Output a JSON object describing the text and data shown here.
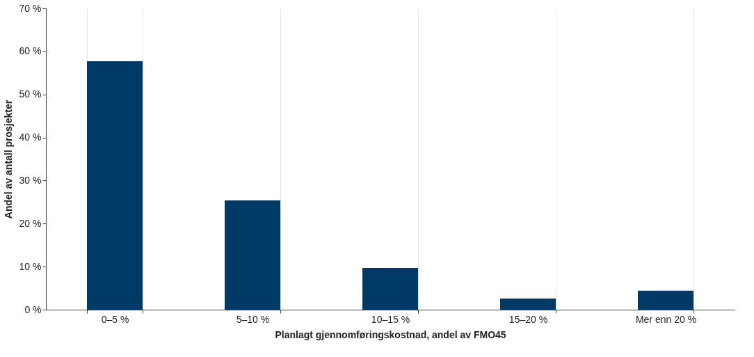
{
  "chart_data": {
    "type": "bar",
    "xlabel": "Planlagt gjennomføringskostnad, andel av FMO45",
    "ylabel": "Andel av antall prosjekter",
    "categories": [
      "0–5 %",
      "5–10 %",
      "10–15 %",
      "15–20 %",
      "Mer enn 20 %"
    ],
    "values": [
      57.7,
      25.4,
      9.7,
      2.6,
      4.4
    ],
    "color": "#003a66",
    "ylim": [
      0,
      70
    ],
    "yticks": [
      {
        "value": 0,
        "label": "0 %"
      },
      {
        "value": 10,
        "label": "10 %"
      },
      {
        "value": 20,
        "label": "20 %"
      },
      {
        "value": 30,
        "label": "30 %"
      },
      {
        "value": 40,
        "label": "40 %"
      },
      {
        "value": 50,
        "label": "50 %"
      },
      {
        "value": 60,
        "label": "60 %"
      },
      {
        "value": 70,
        "label": "70 %"
      }
    ],
    "grid": "x"
  }
}
